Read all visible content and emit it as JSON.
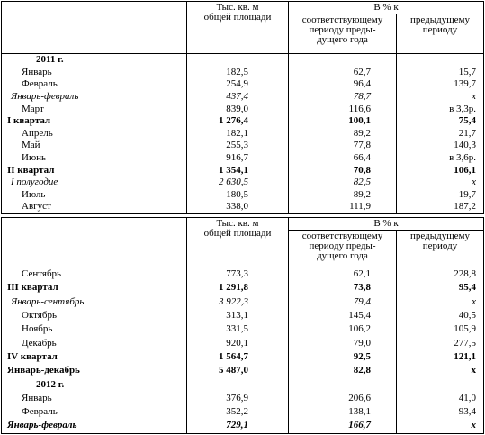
{
  "tables": [
    {
      "header": {
        "area": [
          "Тыс. кв. м",
          "общей площади"
        ],
        "pct": "В % к",
        "prev_year": [
          "соответствующему",
          "периоду преды-",
          "дущего года"
        ],
        "prev_period": [
          "предыдущему",
          "периоду"
        ]
      },
      "rows": [
        [
          "2011 г."
        ],
        [
          "Январь",
          "182,5",
          "62,7",
          "15,7"
        ],
        [
          "Февраль",
          "254,9",
          "96,4",
          "139,7"
        ],
        [
          "Январь-февраль",
          "437,4",
          "78,7",
          "x"
        ],
        [
          "Март",
          "839,0",
          "116,6",
          "в 3,3р."
        ],
        [
          "I квартал",
          "1 276,4",
          "100,1",
          "75,4"
        ],
        [
          "Апрель",
          "182,1",
          "89,2",
          "21,7"
        ],
        [
          "Май",
          "255,3",
          "77,8",
          "140,3"
        ],
        [
          "Июнь",
          "916,7",
          "66,4",
          "в 3,6р."
        ],
        [
          "II квартал",
          "1 354,1",
          "70,8",
          "106,1"
        ],
        [
          "I полугодие",
          "2 630,5",
          "82,5",
          "x"
        ],
        [
          "Июль",
          "180,5",
          "89,2",
          "19,7"
        ],
        [
          "Август",
          "338,0",
          "111,9",
          "187,2"
        ]
      ]
    },
    {
      "header": {
        "area": [
          "Тыс. кв. м",
          "общей площади"
        ],
        "pct": "В % к",
        "prev_year": [
          "соответствующему",
          "периоду преды-",
          "дущего года"
        ],
        "prev_period": [
          "предыдущему",
          "периоду"
        ]
      },
      "rows": [
        [
          "Сентябрь",
          "773,3",
          "62,1",
          "228,8"
        ],
        [
          "III квартал",
          "1 291,8",
          "73,8",
          "95,4"
        ],
        [
          "Январь-сентябрь",
          "3 922,3",
          "79,4",
          "x"
        ],
        [
          "Октябрь",
          "313,1",
          "145,4",
          "40,5"
        ],
        [
          "Ноябрь",
          "331,5",
          "106,2",
          "105,9"
        ],
        [
          "Декабрь",
          "920,1",
          "79,0",
          "277,5"
        ],
        [
          "IV квартал",
          "1 564,7",
          "92,5",
          "121,1"
        ],
        [
          "Январь-декабрь",
          "5 487,0",
          "82,8",
          "x"
        ],
        [
          "2012 г."
        ],
        [
          "Январь",
          "376,9",
          "206,6",
          "41,0"
        ],
        [
          "Февраль",
          "352,2",
          "138,1",
          "93,4"
        ],
        [
          "Январь-февраль",
          "729,1",
          "166,7",
          "x"
        ]
      ]
    }
  ]
}
